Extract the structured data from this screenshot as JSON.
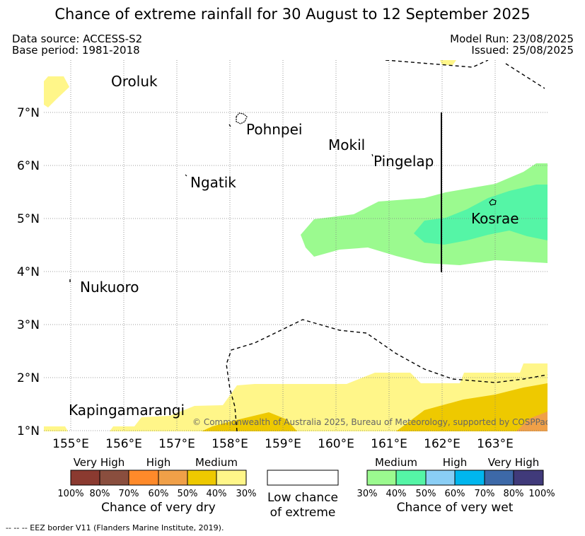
{
  "header": {
    "title": "Chance of extreme rainfall for 30 August to 12 September 2025",
    "data_source": "Data source: ACCESS-S2",
    "base_period": "Base period: 1981-2018",
    "model_run": "Model Run: 23/08/2025",
    "issued": "Issued: 25/08/2025"
  },
  "map": {
    "lon_range": [
      154.5,
      164.0
    ],
    "lat_range": [
      0.95,
      7.95
    ],
    "lon_ticks": [
      "155°E",
      "156°E",
      "157°E",
      "158°E",
      "159°E",
      "160°E",
      "161°E",
      "162°E",
      "163°E"
    ],
    "lat_ticks": [
      "1°N",
      "2°N",
      "3°N",
      "4°N",
      "5°N",
      "6°N",
      "7°N"
    ],
    "grid": "dotted",
    "places": [
      "Oroluk",
      "Pohnpei",
      "Mokil",
      "Pingelap",
      "Ngatik",
      "Kosrae",
      "Nukuoro",
      "Kapingamarangi"
    ],
    "copyright": "© Commonwealth of Australia 2025, Bureau of Meteorology, supported by COSPPac"
  },
  "legend_dry": {
    "groups": [
      "Very High",
      "High",
      "Medium"
    ],
    "ticks": [
      "100%",
      "80%",
      "70%",
      "60%",
      "50%",
      "40%",
      "30%"
    ],
    "colors": [
      "#8B3A30",
      "#8A4E3E",
      "#FF8A2A",
      "#F0A048",
      "#EEC900",
      "#FFF689"
    ],
    "title": "Chance of very dry"
  },
  "legend_low": {
    "line1": "Low chance",
    "line2": "of extreme"
  },
  "legend_wet": {
    "groups": [
      "Medium",
      "High",
      "Very High"
    ],
    "ticks": [
      "30%",
      "40%",
      "50%",
      "60%",
      "70%",
      "80%",
      "100%"
    ],
    "colors": [
      "#9BFA8F",
      "#55F5A6",
      "#8ACEF5",
      "#00B6EE",
      "#3D69A8",
      "#403A7A"
    ],
    "title": "Chance of very wet"
  },
  "footnote": "-- -- -- EEZ border V11 (Flanders Marine Institute, 2019)."
}
